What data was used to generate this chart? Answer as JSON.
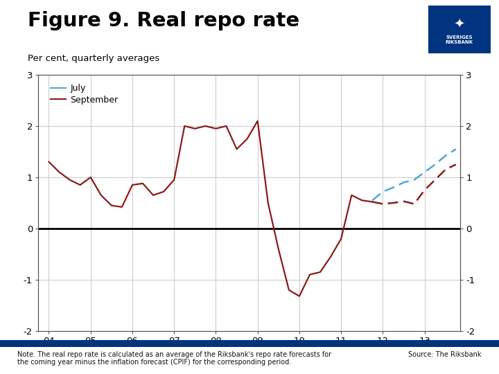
{
  "title": "Figure 9. Real repo rate",
  "subtitle": "Per cent, quarterly averages",
  "note": "Note. The real repo rate is calculated as an average of the Riksbank's repo rate forecasts for\nthe coming year minus the inflation forecast (CPIF) for the corresponding period.",
  "source": "Source: The Riksbank",
  "ylim": [
    -2,
    3
  ],
  "yticks": [
    -2,
    -1,
    0,
    1,
    2,
    3
  ],
  "bg_color": "#ffffff",
  "plot_bg": "#ffffff",
  "title_color": "#000000",
  "grid_color": "#c8c8c8",
  "zero_line_color": "#000000",
  "sep_bar_color": "#003380",
  "logo_bg": "#003380",
  "sep_color_solid": "#8B1A1A",
  "jul_color_dashed": "#4da6d9",
  "sep_color_dashed": "#8B1A1A",
  "xtick_labels": [
    "04",
    "05",
    "06",
    "07",
    "08",
    "09",
    "10",
    "11",
    "12",
    "13"
  ],
  "xtick_positions": [
    2004,
    2005,
    2006,
    2007,
    2008,
    2009,
    2010,
    2011,
    2012,
    2013
  ],
  "xmin": 2003.75,
  "xmax": 2013.85,
  "sep_solid_x": [
    2004.0,
    2004.25,
    2004.5,
    2004.75,
    2005.0,
    2005.25,
    2005.5,
    2005.75,
    2006.0,
    2006.25,
    2006.5,
    2006.75,
    2007.0,
    2007.25,
    2007.5,
    2007.75,
    2008.0,
    2008.25,
    2008.5,
    2008.75,
    2009.0,
    2009.25,
    2009.5,
    2009.75,
    2010.0,
    2010.25,
    2010.5,
    2010.75,
    2011.0,
    2011.25,
    2011.5,
    2011.75
  ],
  "sep_solid_y": [
    1.3,
    1.1,
    0.95,
    0.85,
    1.0,
    0.65,
    0.45,
    0.42,
    0.85,
    0.88,
    0.65,
    0.72,
    0.95,
    2.0,
    1.95,
    2.0,
    1.95,
    2.0,
    1.55,
    1.75,
    2.1,
    0.5,
    -0.4,
    -1.2,
    -1.32,
    -0.9,
    -0.85,
    -0.55,
    -0.2,
    0.65,
    0.55,
    0.52
  ],
  "sep_dashed_x": [
    2011.75,
    2012.0,
    2012.25,
    2012.5,
    2012.75,
    2013.0,
    2013.25,
    2013.5,
    2013.75
  ],
  "sep_dashed_y": [
    0.52,
    0.48,
    0.5,
    0.53,
    0.48,
    0.75,
    0.95,
    1.15,
    1.25
  ],
  "jul_dashed_x": [
    2011.75,
    2012.0,
    2012.25,
    2012.5,
    2012.75,
    2013.0,
    2013.25,
    2013.5,
    2013.75
  ],
  "jul_dashed_y": [
    0.55,
    0.72,
    0.8,
    0.9,
    0.95,
    1.1,
    1.25,
    1.42,
    1.55
  ]
}
